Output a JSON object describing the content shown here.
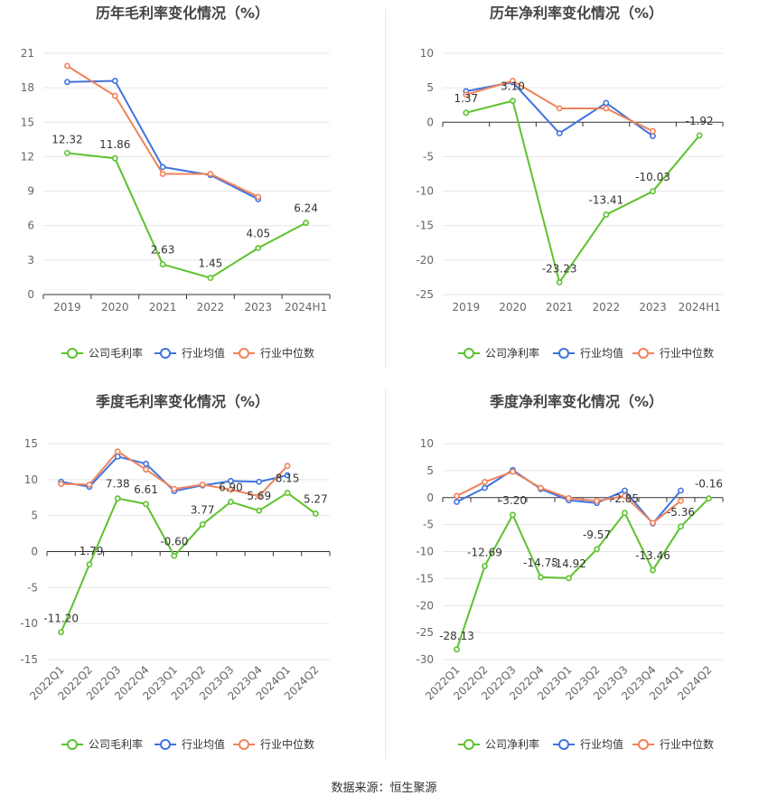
{
  "source_text": "数据来源：恒生聚源",
  "colors": {
    "company": "#5cc22c",
    "industry_avg": "#3f73e0",
    "industry_median": "#f0825a",
    "axis": "#333333",
    "grid": "#e6e6e6",
    "tick_text": "#666666",
    "title_text": "#444444",
    "label_text": "#333333"
  },
  "chart_data": [
    {
      "type": "line",
      "title": "历年毛利率变化情况（%）",
      "categories": [
        "2019",
        "2020",
        "2021",
        "2022",
        "2023",
        "2024H1"
      ],
      "yticks": [
        0,
        3,
        6,
        9,
        12,
        15,
        18,
        21
      ],
      "ylim": [
        0,
        21
      ],
      "grid": true,
      "legend_position": "bottom",
      "series": [
        {
          "name": "公司毛利率",
          "color_key": "company",
          "values": [
            12.32,
            11.86,
            2.63,
            1.45,
            4.05,
            6.24
          ],
          "labels": [
            "12.32",
            "11.86",
            "2.63",
            "1.45",
            "4.05",
            "6.24"
          ]
        },
        {
          "name": "行业均值",
          "color_key": "industry_avg",
          "values": [
            18.5,
            18.6,
            11.1,
            10.4,
            8.3,
            null
          ]
        },
        {
          "name": "行业中位数",
          "color_key": "industry_median",
          "values": [
            19.9,
            17.3,
            10.5,
            10.5,
            8.5,
            null
          ]
        }
      ]
    },
    {
      "type": "line",
      "title": "历年净利率变化情况（%）",
      "categories": [
        "2019",
        "2020",
        "2021",
        "2022",
        "2023",
        "2024H1"
      ],
      "yticks": [
        -25,
        -20,
        -15,
        -10,
        -5,
        0,
        5,
        10
      ],
      "ylim": [
        -25,
        10
      ],
      "grid": true,
      "legend_position": "bottom",
      "series": [
        {
          "name": "公司净利率",
          "color_key": "company",
          "values": [
            1.37,
            3.1,
            -23.23,
            -13.41,
            -10.03,
            -1.92
          ],
          "labels": [
            "1.37",
            "3.10",
            "-23.23",
            "-13.41",
            "-10.03",
            "-1.92"
          ]
        },
        {
          "name": "行业均值",
          "color_key": "industry_avg",
          "values": [
            4.5,
            5.8,
            -1.6,
            2.8,
            -2.0,
            null
          ]
        },
        {
          "name": "行业中位数",
          "color_key": "industry_median",
          "values": [
            4.0,
            6.0,
            2.0,
            2.0,
            -1.3,
            null
          ]
        }
      ]
    },
    {
      "type": "line",
      "title": "季度毛利率变化情况（%）",
      "categories": [
        "2022Q1",
        "2022Q2",
        "2022Q3",
        "2022Q4",
        "2023Q1",
        "2023Q2",
        "2023Q3",
        "2023Q4",
        "2024Q1",
        "2024Q2"
      ],
      "yticks": [
        -15,
        -10,
        -5,
        0,
        5,
        10,
        15
      ],
      "ylim": [
        -15,
        15
      ],
      "grid": true,
      "legend_position": "bottom",
      "series": [
        {
          "name": "公司毛利率",
          "color_key": "company",
          "values": [
            -11.2,
            -1.79,
            7.38,
            6.61,
            -0.6,
            3.77,
            6.9,
            5.69,
            8.15,
            5.27
          ],
          "labels": [
            "-11.20",
            "-1.79",
            "7.38",
            "6.61",
            "-0.60",
            "3.77",
            "6.90",
            "5.69",
            "8.15",
            "5.27"
          ]
        },
        {
          "name": "行业均值",
          "color_key": "industry_avg",
          "values": [
            9.7,
            9.0,
            13.2,
            12.2,
            8.4,
            9.2,
            9.8,
            9.7,
            10.6,
            null
          ]
        },
        {
          "name": "行业中位数",
          "color_key": "industry_median",
          "values": [
            9.4,
            9.3,
            13.9,
            11.4,
            8.7,
            9.3,
            8.6,
            7.7,
            11.9,
            null
          ]
        }
      ]
    },
    {
      "type": "line",
      "title": "季度净利率变化情况（%）",
      "categories": [
        "2022Q1",
        "2022Q2",
        "2022Q3",
        "2022Q4",
        "2023Q1",
        "2023Q2",
        "2023Q3",
        "2023Q4",
        "2024Q1",
        "2024Q2"
      ],
      "yticks": [
        -30,
        -25,
        -20,
        -15,
        -10,
        -5,
        0,
        5,
        10
      ],
      "ylim": [
        -30,
        10
      ],
      "grid": true,
      "legend_position": "bottom",
      "series": [
        {
          "name": "公司净利率",
          "color_key": "company",
          "values": [
            -28.13,
            -12.69,
            -3.2,
            -14.75,
            -14.92,
            -9.57,
            -2.85,
            -13.46,
            -5.36,
            -0.16
          ],
          "labels": [
            "-28.13",
            "-12.69",
            "-3.20",
            "-14.75",
            "-14.92",
            "-9.57",
            "-2.85",
            "-13.46",
            "-5.36",
            "-0.16"
          ]
        },
        {
          "name": "行业均值",
          "color_key": "industry_avg",
          "values": [
            -0.8,
            1.8,
            5.1,
            1.6,
            -0.5,
            -1.0,
            1.3,
            -4.8,
            1.3,
            null
          ]
        },
        {
          "name": "行业中位数",
          "color_key": "industry_median",
          "values": [
            0.3,
            2.9,
            4.8,
            1.8,
            -0.1,
            -0.6,
            0.3,
            -4.7,
            -0.6,
            null
          ]
        }
      ]
    }
  ]
}
